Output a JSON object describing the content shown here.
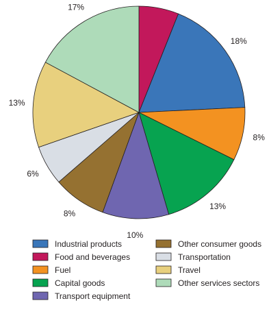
{
  "chart_data": {
    "type": "pie",
    "title": "",
    "slices": [
      {
        "label": "Food and beverages",
        "value": 6,
        "value_label": "6%",
        "color": "#c2185b"
      },
      {
        "label": "Industrial products",
        "value": 18,
        "value_label": "18%",
        "color": "#3a76b9"
      },
      {
        "label": "Fuel",
        "value": 8,
        "value_label": "8%",
        "color": "#f39221"
      },
      {
        "label": "Capital goods",
        "value": 13,
        "value_label": "13%",
        "color": "#07a350"
      },
      {
        "label": "Transport equipment",
        "value": 10,
        "value_label": "10%",
        "color": "#6f66b0"
      },
      {
        "label": "Other consumer goods",
        "value": 8,
        "value_label": "8%",
        "color": "#957131"
      },
      {
        "label": "Transportation",
        "value": 6,
        "value_label": "6%",
        "color": "#d9dee5"
      },
      {
        "label": "Travel",
        "value": 13,
        "value_label": "13%",
        "color": "#e8d07e"
      },
      {
        "label": "Other services sectors",
        "value": 17,
        "value_label": "17%",
        "color": "#aedbb9"
      }
    ],
    "legend": {
      "placement": "bottom",
      "columns": [
        [
          "Industrial products",
          "Food and beverages",
          "Fuel",
          "Capital goods",
          "Transport equipment"
        ],
        [
          "Other consumer goods",
          "Transportation",
          "Travel",
          "Other services sectors"
        ]
      ]
    }
  }
}
